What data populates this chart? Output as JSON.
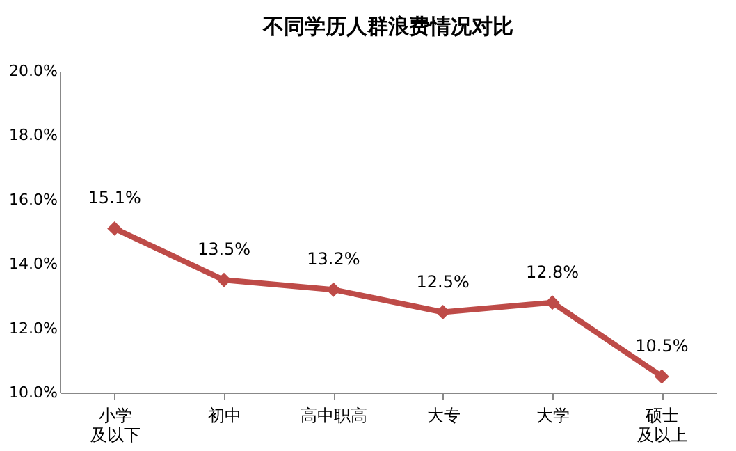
{
  "chart_data": {
    "type": "line",
    "title": "不同学历人群浪费情况对比",
    "categories": [
      "小学及以下",
      "初中",
      "高中职高",
      "大专",
      "大学",
      "硕士及以上"
    ],
    "values": [
      15.1,
      13.5,
      13.2,
      12.5,
      12.8,
      10.5
    ],
    "value_labels": [
      "15.1%",
      "13.5%",
      "13.2%",
      "12.5%",
      "12.8%",
      "10.5%"
    ],
    "color": "#be4b48",
    "marker": "diamond",
    "line_style": "solid",
    "grid": false,
    "ylim": [
      10,
      20
    ],
    "yticks": [
      {
        "value": 10,
        "label": "10.0%"
      },
      {
        "value": 12,
        "label": "12.0%"
      },
      {
        "value": 14,
        "label": "14.0%"
      },
      {
        "value": 16,
        "label": "16.0%"
      },
      {
        "value": 18,
        "label": "18.0%"
      },
      {
        "value": 20,
        "label": "20.0%"
      }
    ]
  }
}
